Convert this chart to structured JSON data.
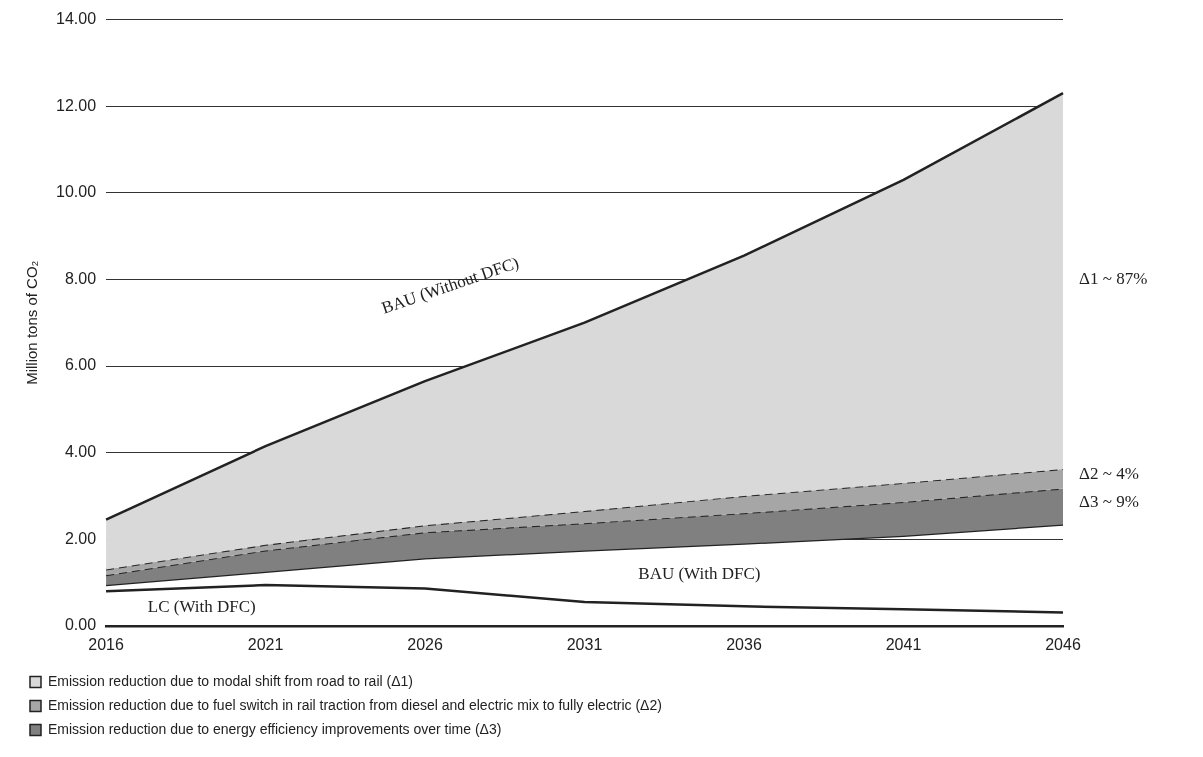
{
  "chart_data": {
    "type": "area",
    "ylabel": "Million tons of CO₂",
    "categories": [
      "2016",
      "2021",
      "2026",
      "2031",
      "2036",
      "2041",
      "2046"
    ],
    "series": [
      {
        "name": "Emission reduction due to modal shift from road to rail (Δ1)",
        "color": "#d9d9d9",
        "line_style": "solid",
        "values": [
          2.45,
          4.15,
          5.65,
          7.0,
          8.55,
          10.3,
          12.3
        ]
      },
      {
        "name": "Emission reduction due to fuel switch in rail traction from diesel and electric mix to fully electric (Δ2)",
        "color": "#a6a6a6",
        "line_style": "dashed",
        "values": [
          1.3,
          1.87,
          2.32,
          2.65,
          3.0,
          3.3,
          3.62
        ]
      },
      {
        "name": "Emission reduction due to energy efficiency improvements over time (Δ3)",
        "color": "#808080",
        "line_style": "dashed",
        "values": [
          1.17,
          1.74,
          2.16,
          2.37,
          2.6,
          2.86,
          3.17
        ]
      },
      {
        "type": "line",
        "color": "#222222",
        "line_style": "solid",
        "values": [
          0.94,
          1.25,
          1.56,
          1.74,
          1.9,
          2.08,
          2.34
        ]
      },
      {
        "type": "line",
        "color": "#222222",
        "line_style": "solid",
        "values": [
          0.8,
          0.94,
          0.86,
          0.55,
          0.45,
          0.38,
          0.31
        ]
      }
    ],
    "ylim": [
      0,
      14
    ],
    "yticks": [
      {
        "value": 0,
        "label": "0.00"
      },
      {
        "value": 2,
        "label": "2.00"
      },
      {
        "value": 4,
        "label": "4.00"
      },
      {
        "value": 6,
        "label": "6.00"
      },
      {
        "value": 8,
        "label": "8.00"
      },
      {
        "value": 10,
        "label": "10.00"
      },
      {
        "value": 12,
        "label": "12.00"
      },
      {
        "value": 14,
        "label": "14.00"
      }
    ],
    "grid": "y",
    "legend": "bottom",
    "annotations": [
      "BAU (Without DFC)",
      "BAU (With DFC)",
      "LC (With DFC)",
      {
        "text": "Δ1 ~ 87%",
        "x": "2046",
        "y": 8
      },
      {
        "text": "Δ2 ~ 4%",
        "x": "2046",
        "y": 3.5
      },
      {
        "text": "Δ3 ~ 9%",
        "x": "2046",
        "y": 2.85
      }
    ]
  }
}
